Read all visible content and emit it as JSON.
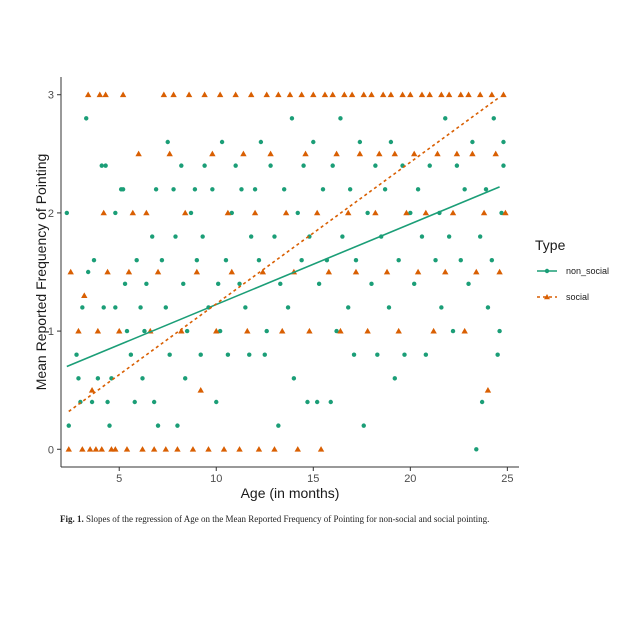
{
  "caption": {
    "label": "Fig. 1.",
    "text": "Slopes of the regression of Age on the Mean Reported Frequency of Pointing for non-social and social pointing."
  },
  "chart_data": {
    "type": "scatter",
    "xlabel": "Age (in months)",
    "ylabel": "Mean Reported Frequency of Pointing",
    "xlim": [
      2,
      25.6
    ],
    "ylim": [
      -0.15,
      3.15
    ],
    "x_ticks": [
      5,
      10,
      15,
      20,
      25
    ],
    "y_ticks": [
      0,
      1,
      2,
      3
    ],
    "grid": false,
    "legend": {
      "title": "Type",
      "position": "right",
      "entries": [
        {
          "label": "non_social",
          "color": "#1b9e77",
          "line": "solid",
          "marker": "circle"
        },
        {
          "label": "social",
          "color": "#d95f02",
          "line": "dashed",
          "marker": "triangle"
        }
      ]
    },
    "series": [
      {
        "name": "non_social",
        "color": "#1b9e77",
        "marker": "circle",
        "fit": {
          "x": [
            2.3,
            24.6
          ],
          "y": [
            0.7,
            2.22
          ]
        },
        "points": [
          [
            2.3,
            2
          ],
          [
            2.4,
            0.2
          ],
          [
            2.8,
            0.8
          ],
          [
            2.9,
            0.6
          ],
          [
            3.0,
            0.4
          ],
          [
            3.1,
            1.2
          ],
          [
            3.3,
            2.8
          ],
          [
            3.4,
            1.5
          ],
          [
            3.6,
            0.4
          ],
          [
            3.7,
            1.6
          ],
          [
            3.9,
            0.6
          ],
          [
            4.1,
            2.4
          ],
          [
            4.3,
            2.4
          ],
          [
            4.2,
            1.2
          ],
          [
            4.4,
            0.4
          ],
          [
            4.5,
            0.2
          ],
          [
            4.6,
            0.6
          ],
          [
            4.8,
            1.2
          ],
          [
            4.8,
            2.0
          ],
          [
            5.1,
            2.2
          ],
          [
            5.2,
            2.2
          ],
          [
            5.3,
            1.4
          ],
          [
            5.4,
            1.0
          ],
          [
            5.6,
            0.8
          ],
          [
            5.8,
            0.4
          ],
          [
            5.9,
            1.6
          ],
          [
            6.1,
            1.2
          ],
          [
            6.2,
            0.6
          ],
          [
            6.3,
            1.0
          ],
          [
            6.4,
            1.4
          ],
          [
            6.7,
            1.8
          ],
          [
            6.8,
            0.4
          ],
          [
            6.9,
            2.2
          ],
          [
            7.0,
            0.2
          ],
          [
            7.2,
            1.6
          ],
          [
            7.4,
            1.2
          ],
          [
            7.5,
            2.6
          ],
          [
            7.6,
            0.8
          ],
          [
            7.8,
            2.2
          ],
          [
            7.9,
            1.8
          ],
          [
            8.0,
            0.2
          ],
          [
            8.2,
            2.4
          ],
          [
            8.3,
            1.4
          ],
          [
            8.4,
            0.6
          ],
          [
            8.5,
            1.0
          ],
          [
            8.7,
            2.0
          ],
          [
            8.9,
            2.2
          ],
          [
            9.0,
            1.6
          ],
          [
            9.2,
            0.8
          ],
          [
            9.3,
            1.8
          ],
          [
            9.4,
            2.4
          ],
          [
            9.6,
            1.2
          ],
          [
            9.8,
            2.2
          ],
          [
            10.0,
            0.4
          ],
          [
            10.1,
            1.4
          ],
          [
            10.2,
            1.0
          ],
          [
            10.3,
            2.6
          ],
          [
            10.5,
            1.6
          ],
          [
            10.6,
            0.8
          ],
          [
            10.8,
            2.0
          ],
          [
            11.0,
            2.4
          ],
          [
            11.2,
            1.4
          ],
          [
            11.3,
            2.2
          ],
          [
            11.5,
            1.2
          ],
          [
            11.7,
            0.8
          ],
          [
            11.8,
            1.8
          ],
          [
            12.0,
            2.2
          ],
          [
            12.2,
            1.6
          ],
          [
            12.3,
            2.6
          ],
          [
            12.5,
            0.8
          ],
          [
            12.6,
            1.0
          ],
          [
            12.8,
            2.4
          ],
          [
            13.0,
            1.8
          ],
          [
            13.2,
            0.2
          ],
          [
            13.3,
            1.4
          ],
          [
            13.5,
            2.2
          ],
          [
            13.7,
            1.2
          ],
          [
            13.9,
            2.8
          ],
          [
            14.0,
            0.6
          ],
          [
            14.2,
            2.0
          ],
          [
            14.4,
            1.6
          ],
          [
            14.5,
            2.4
          ],
          [
            14.7,
            0.4
          ],
          [
            14.8,
            1.8
          ],
          [
            15.0,
            2.6
          ],
          [
            15.2,
            0.4
          ],
          [
            15.3,
            1.4
          ],
          [
            15.5,
            2.2
          ],
          [
            15.7,
            1.6
          ],
          [
            15.9,
            0.4
          ],
          [
            16.0,
            2.4
          ],
          [
            16.2,
            1.0
          ],
          [
            16.4,
            2.8
          ],
          [
            16.5,
            1.8
          ],
          [
            16.8,
            1.2
          ],
          [
            16.9,
            2.2
          ],
          [
            17.1,
            0.8
          ],
          [
            17.2,
            1.6
          ],
          [
            17.4,
            2.6
          ],
          [
            17.6,
            0.2
          ],
          [
            17.8,
            2.0
          ],
          [
            18.0,
            1.4
          ],
          [
            18.2,
            2.4
          ],
          [
            18.3,
            0.8
          ],
          [
            18.5,
            1.8
          ],
          [
            18.7,
            2.2
          ],
          [
            18.9,
            1.2
          ],
          [
            19.0,
            2.6
          ],
          [
            19.2,
            0.6
          ],
          [
            19.4,
            1.6
          ],
          [
            19.6,
            2.4
          ],
          [
            19.7,
            0.8
          ],
          [
            20.0,
            2.0
          ],
          [
            20.2,
            1.4
          ],
          [
            20.4,
            2.2
          ],
          [
            20.6,
            1.8
          ],
          [
            20.8,
            0.8
          ],
          [
            21.0,
            2.4
          ],
          [
            21.3,
            1.6
          ],
          [
            21.5,
            2.0
          ],
          [
            21.6,
            1.2
          ],
          [
            21.8,
            2.8
          ],
          [
            22.0,
            1.8
          ],
          [
            22.2,
            1.0
          ],
          [
            22.4,
            2.4
          ],
          [
            22.6,
            1.6
          ],
          [
            22.8,
            2.2
          ],
          [
            23.0,
            1.4
          ],
          [
            23.2,
            2.6
          ],
          [
            23.4,
            0.0
          ],
          [
            23.6,
            1.8
          ],
          [
            23.7,
            0.4
          ],
          [
            23.9,
            2.2
          ],
          [
            24.0,
            1.2
          ],
          [
            24.2,
            1.6
          ],
          [
            24.3,
            2.8
          ],
          [
            24.5,
            0.8
          ],
          [
            24.6,
            1.0
          ],
          [
            24.7,
            2.0
          ],
          [
            24.8,
            2.4
          ],
          [
            24.8,
            2.6
          ]
        ]
      },
      {
        "name": "social",
        "color": "#d95f02",
        "marker": "triangle",
        "fit": {
          "x": [
            2.4,
            24.6
          ],
          "y": [
            0.32,
            2.98
          ]
        },
        "points": [
          [
            2.4,
            0.0
          ],
          [
            2.5,
            1.5
          ],
          [
            2.9,
            1.0
          ],
          [
            3.1,
            0.0
          ],
          [
            3.2,
            1.3
          ],
          [
            3.4,
            3.0
          ],
          [
            3.5,
            0.0
          ],
          [
            3.6,
            0.5
          ],
          [
            3.8,
            0.0
          ],
          [
            3.9,
            1.0
          ],
          [
            4.0,
            3.0
          ],
          [
            4.1,
            0.0
          ],
          [
            4.2,
            2.0
          ],
          [
            4.3,
            3.0
          ],
          [
            4.4,
            1.5
          ],
          [
            4.6,
            0.0
          ],
          [
            4.8,
            0.0
          ],
          [
            5.0,
            1.0
          ],
          [
            5.2,
            3.0
          ],
          [
            5.4,
            0.0
          ],
          [
            5.5,
            1.5
          ],
          [
            5.7,
            2.0
          ],
          [
            6.0,
            2.5
          ],
          [
            6.2,
            0.0
          ],
          [
            6.4,
            2.0
          ],
          [
            6.6,
            1.0
          ],
          [
            6.8,
            0.0
          ],
          [
            7.0,
            1.5
          ],
          [
            7.3,
            3.0
          ],
          [
            7.4,
            0.0
          ],
          [
            7.6,
            2.5
          ],
          [
            7.8,
            3.0
          ],
          [
            8.0,
            0.0
          ],
          [
            8.2,
            1.0
          ],
          [
            8.4,
            2.0
          ],
          [
            8.6,
            3.0
          ],
          [
            8.8,
            0.0
          ],
          [
            9.0,
            1.5
          ],
          [
            9.2,
            0.5
          ],
          [
            9.4,
            3.0
          ],
          [
            9.6,
            0.0
          ],
          [
            9.8,
            2.5
          ],
          [
            10.0,
            1.0
          ],
          [
            10.2,
            3.0
          ],
          [
            10.4,
            0.0
          ],
          [
            10.6,
            2.0
          ],
          [
            10.8,
            1.5
          ],
          [
            11.0,
            3.0
          ],
          [
            11.2,
            0.0
          ],
          [
            11.4,
            2.5
          ],
          [
            11.6,
            1.0
          ],
          [
            11.8,
            3.0
          ],
          [
            12.0,
            2.0
          ],
          [
            12.2,
            0.0
          ],
          [
            12.4,
            1.5
          ],
          [
            12.6,
            3.0
          ],
          [
            12.8,
            2.5
          ],
          [
            13.0,
            0.0
          ],
          [
            13.2,
            3.0
          ],
          [
            13.4,
            1.0
          ],
          [
            13.6,
            2.0
          ],
          [
            13.8,
            3.0
          ],
          [
            14.0,
            1.5
          ],
          [
            14.2,
            0.0
          ],
          [
            14.4,
            3.0
          ],
          [
            14.6,
            2.5
          ],
          [
            14.8,
            1.0
          ],
          [
            15.0,
            3.0
          ],
          [
            15.2,
            2.0
          ],
          [
            15.4,
            0.0
          ],
          [
            15.6,
            3.0
          ],
          [
            15.8,
            1.5
          ],
          [
            16.0,
            3.0
          ],
          [
            16.2,
            2.5
          ],
          [
            16.4,
            1.0
          ],
          [
            16.6,
            3.0
          ],
          [
            16.8,
            2.0
          ],
          [
            17.0,
            3.0
          ],
          [
            17.2,
            1.5
          ],
          [
            17.4,
            2.5
          ],
          [
            17.6,
            3.0
          ],
          [
            17.8,
            1.0
          ],
          [
            18.0,
            3.0
          ],
          [
            18.2,
            2.0
          ],
          [
            18.4,
            2.5
          ],
          [
            18.6,
            3.0
          ],
          [
            18.8,
            1.5
          ],
          [
            19.0,
            3.0
          ],
          [
            19.2,
            2.5
          ],
          [
            19.4,
            1.0
          ],
          [
            19.6,
            3.0
          ],
          [
            19.8,
            2.0
          ],
          [
            20.0,
            3.0
          ],
          [
            20.2,
            2.5
          ],
          [
            20.4,
            1.5
          ],
          [
            20.6,
            3.0
          ],
          [
            20.8,
            2.0
          ],
          [
            21.0,
            3.0
          ],
          [
            21.2,
            1.0
          ],
          [
            21.4,
            2.5
          ],
          [
            21.6,
            3.0
          ],
          [
            21.8,
            1.5
          ],
          [
            22.0,
            3.0
          ],
          [
            22.2,
            2.0
          ],
          [
            22.4,
            2.5
          ],
          [
            22.6,
            3.0
          ],
          [
            22.8,
            1.0
          ],
          [
            23.0,
            3.0
          ],
          [
            23.2,
            2.5
          ],
          [
            23.4,
            1.5
          ],
          [
            23.6,
            3.0
          ],
          [
            23.8,
            2.0
          ],
          [
            24.0,
            0.5
          ],
          [
            24.2,
            3.0
          ],
          [
            24.4,
            2.5
          ],
          [
            24.6,
            1.5
          ],
          [
            24.8,
            3.0
          ],
          [
            24.9,
            2.0
          ]
        ]
      }
    ]
  }
}
